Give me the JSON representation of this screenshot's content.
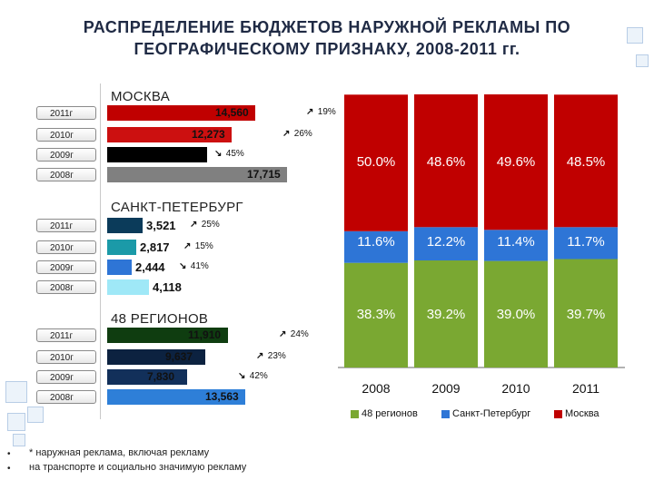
{
  "title_line1": "РАСПРЕДЕЛЕНИЕ БЮДЖЕТОВ НАРУЖНОЙ РЕКЛАМЫ ПО",
  "title_line2": "ГЕОГРАФИЧЕСКОМУ ПРИЗНАКУ, 2008-2011 гг.",
  "colors": {
    "moscow": "#c00000",
    "spb": "#2e75d6",
    "regions": "#7aa832"
  },
  "chart_data": [
    {
      "type": "bar",
      "orientation": "horizontal",
      "sections": [
        {
          "name": "МОСКВА",
          "rows": [
            {
              "year": "2011г",
              "value": 14.56,
              "label": "14,560",
              "change": "19%",
              "dir": "up",
              "color": "#c00000"
            },
            {
              "year": "2010г",
              "value": 12.273,
              "label": "12,273",
              "change": "26%",
              "dir": "up",
              "color": "#cc1010"
            },
            {
              "year": "2009г",
              "value": 9.8,
              "label": "",
              "change": "45%",
              "dir": "down",
              "color": "#000000"
            },
            {
              "year": "2008г",
              "value": 17.715,
              "label": "17,715",
              "change": "",
              "dir": "",
              "color": "#808080"
            }
          ]
        },
        {
          "name": "САНКТ-ПЕТЕРБУРГ",
          "rows": [
            {
              "year": "2011г",
              "value": 3.521,
              "label": "3,521",
              "change": "25%",
              "dir": "up",
              "color": "#0b3b5a"
            },
            {
              "year": "2010г",
              "value": 2.817,
              "label": "2,817",
              "change": "15%",
              "dir": "up",
              "color": "#1b9aa8"
            },
            {
              "year": "2009г",
              "value": 2.444,
              "label": "2,444",
              "change": "41%",
              "dir": "down",
              "color": "#2e75d6"
            },
            {
              "year": "2008г",
              "value": 4.118,
              "label": "4,118",
              "change": "",
              "dir": "",
              "color": "#9fe8f7"
            }
          ]
        },
        {
          "name": "48 РЕГИОНОВ",
          "rows": [
            {
              "year": "2011г",
              "value": 11.91,
              "label": "11,910",
              "change": "24%",
              "dir": "up",
              "color": "#0f3d10"
            },
            {
              "year": "2010г",
              "value": 9.637,
              "label": "9,637",
              "change": "23%",
              "dir": "up",
              "color": "#0c2240"
            },
            {
              "year": "2009г",
              "value": 7.83,
              "label": "7,830",
              "change": "42%",
              "dir": "down",
              "color": "#12305a"
            },
            {
              "year": "2008г",
              "value": 13.563,
              "label": "13,563",
              "change": "",
              "dir": "",
              "color": "#2e7fd8"
            }
          ]
        }
      ]
    },
    {
      "type": "bar",
      "stacked": true,
      "percent": true,
      "categories": [
        "2008",
        "2009",
        "2010",
        "2011"
      ],
      "series": [
        {
          "name": "48 регионов",
          "values": [
            38.3,
            39.2,
            39.0,
            39.7
          ],
          "labels": [
            "38.3%",
            "39.2%",
            "39.0%",
            "39.7%"
          ],
          "color": "#7aa832"
        },
        {
          "name": "Санкт-Петербург",
          "values": [
            11.6,
            12.2,
            11.4,
            11.7
          ],
          "labels": [
            "11.6%",
            "12.2%",
            "11.4%",
            "11.7%"
          ],
          "color": "#2e75d6"
        },
        {
          "name": "Москва",
          "values": [
            50.0,
            48.6,
            49.6,
            48.5
          ],
          "labels": [
            "50.0%",
            "48.6%",
            "49.6%",
            "48.5%"
          ],
          "color": "#c00000"
        }
      ],
      "ylim": [
        0,
        100
      ]
    }
  ],
  "footnote_line1": "* наружная реклама, включая рекламу",
  "footnote_line2": "на транспорте и социально значимую рекламу"
}
